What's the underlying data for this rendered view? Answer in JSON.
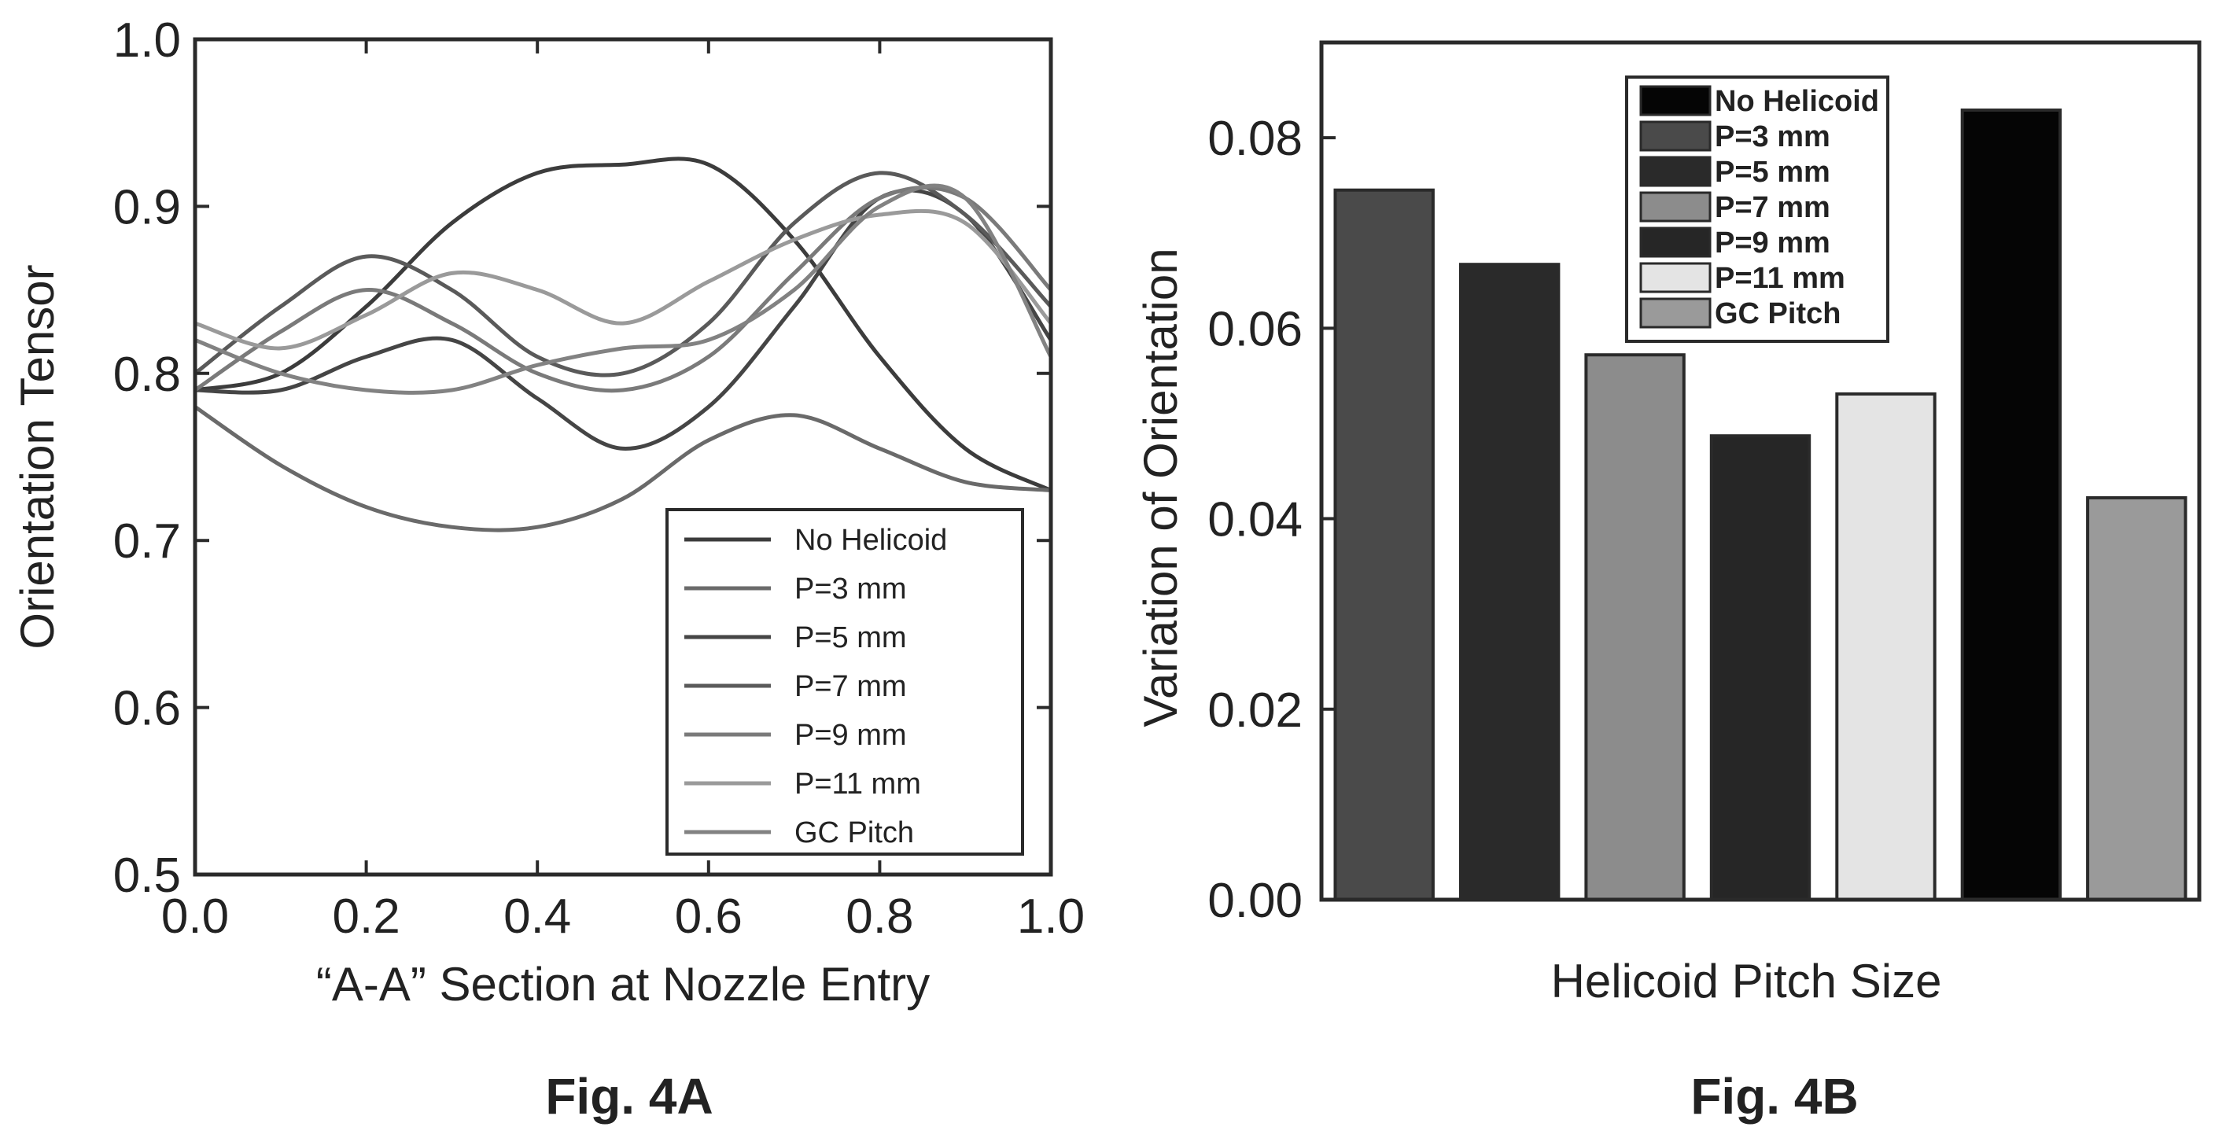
{
  "figure_a": {
    "caption": "Fig. 4A"
  },
  "figure_b": {
    "caption": "Fig. 4B"
  },
  "chart_data": [
    {
      "type": "line",
      "title": "",
      "xlabel": "“A-A” Section at Nozzle Entry",
      "ylabel": "Orientation Tensor",
      "xlim": [
        0.0,
        1.0
      ],
      "ylim": [
        0.5,
        1.0
      ],
      "xticks": [
        "0.0",
        "0.2",
        "0.4",
        "0.6",
        "0.8",
        "1.0"
      ],
      "yticks": [
        "0.5",
        "0.6",
        "0.7",
        "0.8",
        "0.9",
        "1.0"
      ],
      "grid": false,
      "legend_position": "bottom-right",
      "series": [
        {
          "name": "No Helicoid",
          "color": "#3c3c3c",
          "x": [
            0.0,
            0.1,
            0.2,
            0.3,
            0.4,
            0.5,
            0.6,
            0.7,
            0.8,
            0.9,
            1.0
          ],
          "y": [
            0.79,
            0.8,
            0.84,
            0.89,
            0.92,
            0.925,
            0.925,
            0.88,
            0.81,
            0.755,
            0.73
          ]
        },
        {
          "name": "P=3 mm",
          "color": "#6a6a6a",
          "x": [
            0.0,
            0.1,
            0.2,
            0.3,
            0.4,
            0.5,
            0.6,
            0.7,
            0.8,
            0.9,
            1.0
          ],
          "y": [
            0.78,
            0.745,
            0.72,
            0.708,
            0.708,
            0.725,
            0.76,
            0.775,
            0.755,
            0.735,
            0.73
          ]
        },
        {
          "name": "P=5 mm",
          "color": "#454545",
          "x": [
            0.0,
            0.1,
            0.2,
            0.3,
            0.4,
            0.5,
            0.6,
            0.7,
            0.8,
            0.9,
            1.0
          ],
          "y": [
            0.79,
            0.79,
            0.81,
            0.82,
            0.785,
            0.755,
            0.78,
            0.84,
            0.905,
            0.895,
            0.82
          ]
        },
        {
          "name": "P=7 mm",
          "color": "#5a5a5a",
          "x": [
            0.0,
            0.1,
            0.2,
            0.3,
            0.4,
            0.5,
            0.6,
            0.7,
            0.8,
            0.9,
            1.0
          ],
          "y": [
            0.8,
            0.84,
            0.87,
            0.85,
            0.81,
            0.8,
            0.83,
            0.89,
            0.92,
            0.895,
            0.84
          ]
        },
        {
          "name": "P=9 mm",
          "color": "#7a7a7a",
          "x": [
            0.0,
            0.1,
            0.2,
            0.3,
            0.4,
            0.5,
            0.6,
            0.7,
            0.8,
            0.9,
            1.0
          ],
          "y": [
            0.79,
            0.825,
            0.85,
            0.83,
            0.8,
            0.79,
            0.81,
            0.86,
            0.905,
            0.905,
            0.85
          ]
        },
        {
          "name": "P=11 mm",
          "color": "#9a9a9a",
          "x": [
            0.0,
            0.1,
            0.2,
            0.3,
            0.4,
            0.5,
            0.6,
            0.7,
            0.8,
            0.9,
            1.0
          ],
          "y": [
            0.83,
            0.815,
            0.835,
            0.86,
            0.85,
            0.83,
            0.855,
            0.88,
            0.895,
            0.89,
            0.83
          ]
        },
        {
          "name": "GC Pitch",
          "color": "#828282",
          "x": [
            0.0,
            0.1,
            0.2,
            0.3,
            0.4,
            0.5,
            0.6,
            0.7,
            0.8,
            0.9,
            1.0
          ],
          "y": [
            0.82,
            0.8,
            0.79,
            0.79,
            0.805,
            0.815,
            0.82,
            0.85,
            0.9,
            0.905,
            0.81
          ]
        }
      ]
    },
    {
      "type": "bar",
      "title": "",
      "xlabel": "Helicoid Pitch Size",
      "ylabel": "Variation of Orientation",
      "ylim": [
        0.0,
        0.09
      ],
      "yticks": [
        "0.00",
        "0.02",
        "0.04",
        "0.06",
        "0.08"
      ],
      "grid": false,
      "legend_position": "top-center",
      "categories": [
        "P=3 mm",
        "P=5 mm",
        "P=7 mm",
        "P=9 mm",
        "P=11 mm",
        "No Helicoid",
        "GC Pitch"
      ],
      "values": [
        0.0745,
        0.0667,
        0.0572,
        0.0487,
        0.0531,
        0.0829,
        0.0422
      ],
      "colors": [
        "#4a4a4a",
        "#2a2a2a",
        "#8c8c8c",
        "#262626",
        "#e4e4e4",
        "#050505",
        "#9a9a9a"
      ],
      "legend": [
        {
          "name": "No Helicoid",
          "color": "#050505"
        },
        {
          "name": "P=3 mm",
          "color": "#4a4a4a"
        },
        {
          "name": "P=5 mm",
          "color": "#2a2a2a"
        },
        {
          "name": "P=7 mm",
          "color": "#8c8c8c"
        },
        {
          "name": "P=9 mm",
          "color": "#262626"
        },
        {
          "name": "P=11 mm",
          "color": "#e4e4e4"
        },
        {
          "name": "GC Pitch",
          "color": "#9a9a9a"
        }
      ]
    }
  ]
}
